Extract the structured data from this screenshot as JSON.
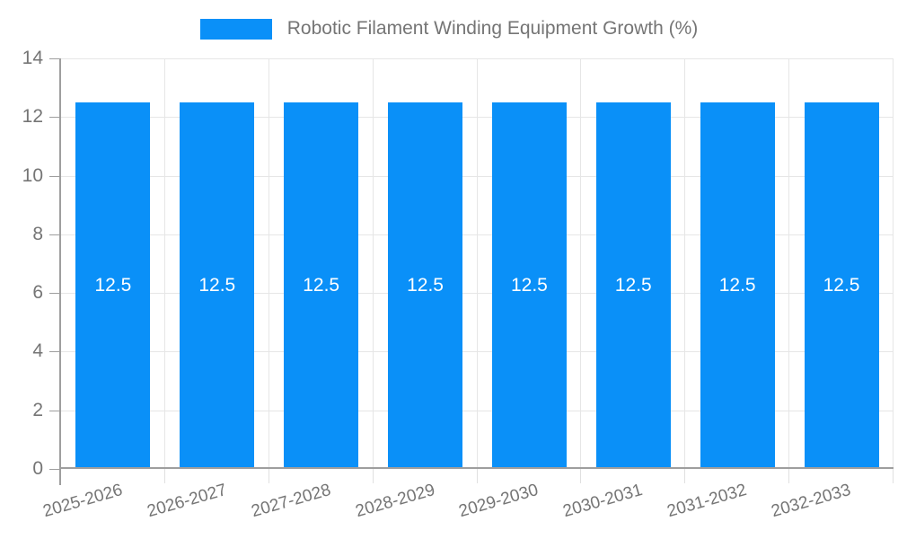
{
  "colors": {
    "bar": "#0a90f8",
    "grid": "#e6e6e6",
    "axis": "#9e9e9e",
    "text": "#757575",
    "bar_label": "#ffffff",
    "background": "#ffffff"
  },
  "legend": {
    "position": "top-center",
    "entries": [
      "Robotic Filament Winding Equipment Growth (%)"
    ]
  },
  "chart_data": {
    "type": "bar",
    "title": "Robotic Filament Winding Equipment Growth (%)",
    "categories": [
      "2025-2026",
      "2026-2027",
      "2027-2028",
      "2028-2029",
      "2029-2030",
      "2030-2031",
      "2031-2032",
      "2032-2033"
    ],
    "values": [
      12.5,
      12.5,
      12.5,
      12.5,
      12.5,
      12.5,
      12.5,
      12.5
    ],
    "bar_labels": [
      "12.5",
      "12.5",
      "12.5",
      "12.5",
      "12.5",
      "12.5",
      "12.5",
      "12.5"
    ],
    "xlabel": "",
    "ylabel": "",
    "ylim": [
      0,
      14
    ],
    "yticks": [
      0,
      2,
      4,
      6,
      8,
      10,
      12,
      14
    ],
    "grid": true,
    "x_tick_rotation": -16,
    "legend_position": "top"
  }
}
